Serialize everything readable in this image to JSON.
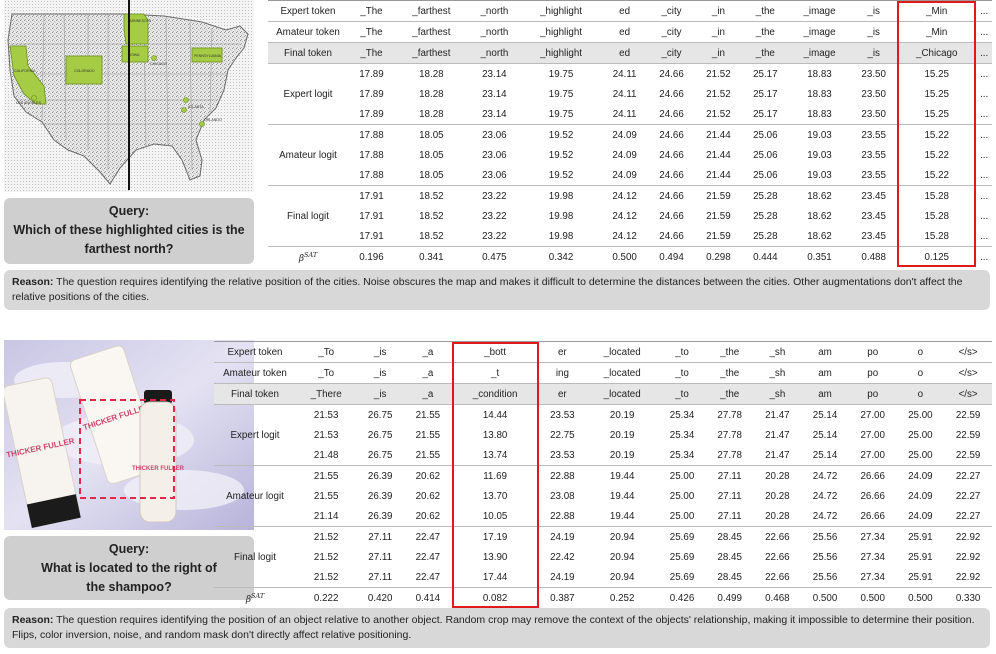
{
  "panel1": {
    "map_labels": [
      "MINNESOTA",
      "CALIFORNIA",
      "COLORADO",
      "IOWA",
      "CHICAGO",
      "PENNSYLVANIA",
      "LOS ANGELES",
      "ATLANTA",
      "ORLANDO"
    ],
    "query_title": "Query:",
    "query_line1": "Which of these highlighted cities is the",
    "query_line2": "farthest north?",
    "table": {
      "label_expert_token": "Expert token",
      "label_amateur_token": "Amateur token",
      "label_final_token": "Final token",
      "label_expert_logit": "Expert logit",
      "label_amateur_logit": "Amateur logit",
      "label_final_logit": "Final logit",
      "label_beta": "β",
      "label_beta_sup": "SAT",
      "expert_tokens": [
        "_The",
        "_farthest",
        "_north",
        "_highlight",
        "ed",
        "_city",
        "_in",
        "_the",
        "_image",
        "_is",
        "_Min",
        "..."
      ],
      "amateur_tokens": [
        "_The",
        "_farthest",
        "_north",
        "_highlight",
        "ed",
        "_city",
        "_in",
        "_the",
        "_image",
        "_is",
        "_Min",
        "..."
      ],
      "final_tokens": [
        "_The",
        "_farthest",
        "_north",
        "_highlight",
        "ed",
        "_city",
        "_in",
        "_the",
        "_image",
        "_is",
        "_Chicago",
        "..."
      ],
      "expert_logits": [
        [
          "17.89",
          "18.28",
          "23.14",
          "19.75",
          "24.11",
          "24.66",
          "21.52",
          "25.17",
          "18.83",
          "23.50",
          "15.25",
          "..."
        ],
        [
          "17.89",
          "18.28",
          "23.14",
          "19.75",
          "24.11",
          "24.66",
          "21.52",
          "25.17",
          "18.83",
          "23.50",
          "15.25",
          "..."
        ],
        [
          "17.89",
          "18.28",
          "23.14",
          "19.75",
          "24.11",
          "24.66",
          "21.52",
          "25.17",
          "18.83",
          "23.50",
          "15.25",
          "..."
        ]
      ],
      "amateur_logits": [
        [
          "17.88",
          "18.05",
          "23.06",
          "19.52",
          "24.09",
          "24.66",
          "21.44",
          "25.06",
          "19.03",
          "23.55",
          "15.22",
          "..."
        ],
        [
          "17.88",
          "18.05",
          "23.06",
          "19.52",
          "24.09",
          "24.66",
          "21.44",
          "25.06",
          "19.03",
          "23.55",
          "15.22",
          "..."
        ],
        [
          "17.88",
          "18.05",
          "23.06",
          "19.52",
          "24.09",
          "24.66",
          "21.44",
          "25.06",
          "19.03",
          "23.55",
          "15.22",
          "..."
        ]
      ],
      "final_logits": [
        [
          "17.91",
          "18.52",
          "23.22",
          "19.98",
          "24.12",
          "24.66",
          "21.59",
          "25.28",
          "18.62",
          "23.45",
          "15.28",
          "..."
        ],
        [
          "17.91",
          "18.52",
          "23.22",
          "19.98",
          "24.12",
          "24.66",
          "21.59",
          "25.28",
          "18.62",
          "23.45",
          "15.28",
          "..."
        ],
        [
          "17.91",
          "18.52",
          "23.22",
          "19.98",
          "24.12",
          "24.66",
          "21.59",
          "25.28",
          "18.62",
          "23.45",
          "15.28",
          "..."
        ]
      ],
      "beta": [
        "0.196",
        "0.341",
        "0.475",
        "0.342",
        "0.500",
        "0.494",
        "0.298",
        "0.444",
        "0.351",
        "0.488",
        "0.125",
        "..."
      ]
    },
    "reason_label": "Reason:",
    "reason_text": " The question requires identifying the relative position of the cities. Noise obscures the map and makes it difficult to determine the distances between the cities. Other augmentations don't affect the relative positions of the cities."
  },
  "panel2": {
    "product_label": "THICKER FULLER",
    "query_title": "Query:",
    "query_line1": "What is located to the right of",
    "query_line2": "the shampoo?",
    "table": {
      "label_expert_token": "Expert token",
      "label_amateur_token": "Amateur token",
      "label_final_token": "Final token",
      "label_expert_logit": "Expert logit",
      "label_amateur_logit": "Amateur logit",
      "label_final_logit": "Final logit",
      "label_beta": "β",
      "label_beta_sup": "SAT",
      "expert_tokens": [
        "_To",
        "_is",
        "_a",
        "_bott",
        "er",
        "_located",
        "_to",
        "_the",
        "_sh",
        "am",
        "po",
        "o",
        "</s>"
      ],
      "amateur_tokens": [
        "_To",
        "_is",
        "_a",
        "_t",
        "ing",
        "_located",
        "_to",
        "_the",
        "_sh",
        "am",
        "po",
        "o",
        "</s>"
      ],
      "final_tokens": [
        "_There",
        "_is",
        "_a",
        "_condition",
        "er",
        "_located",
        "_to",
        "_the",
        "_sh",
        "am",
        "po",
        "o",
        "</s>"
      ],
      "expert_logits": [
        [
          "21.53",
          "26.75",
          "21.55",
          "14.44",
          "23.53",
          "20.19",
          "25.34",
          "27.78",
          "21.47",
          "25.14",
          "27.00",
          "25.00",
          "22.59"
        ],
        [
          "21.53",
          "26.75",
          "21.55",
          "13.80",
          "22.75",
          "20.19",
          "25.34",
          "27.78",
          "21.47",
          "25.14",
          "27.00",
          "25.00",
          "22.59"
        ],
        [
          "21.48",
          "26.75",
          "21.55",
          "13.74",
          "23.53",
          "20.19",
          "25.34",
          "27.78",
          "21.47",
          "25.14",
          "27.00",
          "25.00",
          "22.59"
        ]
      ],
      "amateur_logits": [
        [
          "21.55",
          "26.39",
          "20.62",
          "11.69",
          "22.88",
          "19.44",
          "25.00",
          "27.11",
          "20.28",
          "24.72",
          "26.66",
          "24.09",
          "22.27"
        ],
        [
          "21.55",
          "26.39",
          "20.62",
          "13.70",
          "23.08",
          "19.44",
          "25.00",
          "27.11",
          "20.28",
          "24.72",
          "26.66",
          "24.09",
          "22.27"
        ],
        [
          "21.14",
          "26.39",
          "20.62",
          "10.05",
          "22.88",
          "19.44",
          "25.00",
          "27.11",
          "20.28",
          "24.72",
          "26.66",
          "24.09",
          "22.27"
        ]
      ],
      "final_logits": [
        [
          "21.52",
          "27.11",
          "22.47",
          "17.19",
          "24.19",
          "20.94",
          "25.69",
          "28.45",
          "22.66",
          "25.56",
          "27.34",
          "25.91",
          "22.92"
        ],
        [
          "21.52",
          "27.11",
          "22.47",
          "13.90",
          "22.42",
          "20.94",
          "25.69",
          "28.45",
          "22.66",
          "25.56",
          "27.34",
          "25.91",
          "22.92"
        ],
        [
          "21.52",
          "27.11",
          "22.47",
          "17.44",
          "24.19",
          "20.94",
          "25.69",
          "28.45",
          "22.66",
          "25.56",
          "27.34",
          "25.91",
          "22.92"
        ]
      ],
      "beta": [
        "0.222",
        "0.420",
        "0.414",
        "0.082",
        "0.387",
        "0.252",
        "0.426",
        "0.499",
        "0.468",
        "0.500",
        "0.500",
        "0.500",
        "0.330"
      ]
    },
    "reason_label": "Reason:",
    "reason_text": " The question requires identifying the position of an object relative to another object. Random crop may remove the context of the objects' relationship, making it impossible to determine their position. Flips, color inversion, noise, and random mask don't directly affect relative positioning."
  }
}
